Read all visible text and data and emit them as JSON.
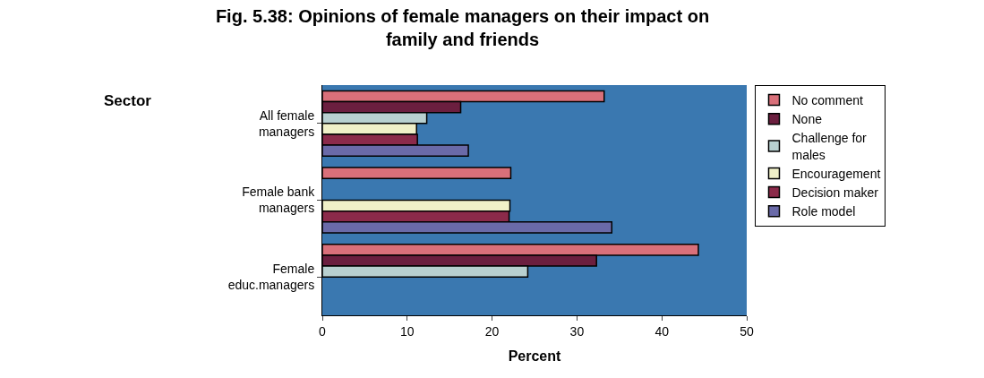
{
  "chart_data": {
    "type": "bar",
    "orientation": "horizontal",
    "title": "Fig. 5.38: Opinions of female managers on their impact on\nfamily and friends",
    "xlabel": "Percent",
    "annotations": [
      "Sector"
    ],
    "categories": [
      "All female\nmanagers",
      "Female bank\nmanagers",
      "Female\neduc.managers"
    ],
    "series": [
      {
        "name": "No comment",
        "color": "#d9707a",
        "values": [
          33.2,
          22.2,
          44.3
        ]
      },
      {
        "name": "None",
        "color": "#6b1f3f",
        "values": [
          16.3,
          null,
          32.3
        ]
      },
      {
        "name": "Challenge for\nmales",
        "color": "#b8d0d0",
        "values": [
          12.3,
          null,
          24.2
        ]
      },
      {
        "name": "Encouragement",
        "color": "#f0f0c8",
        "values": [
          11.1,
          22.1,
          null
        ]
      },
      {
        "name": "Decision maker",
        "color": "#8b2a4a",
        "values": [
          11.2,
          22.0,
          null
        ]
      },
      {
        "name": "Role model",
        "color": "#6a6aa8",
        "values": [
          17.2,
          34.1,
          null
        ]
      }
    ],
    "xlim": [
      0,
      50
    ],
    "xticks": [
      0,
      10,
      20,
      30,
      40,
      50
    ],
    "grid": false,
    "legend": "right"
  }
}
